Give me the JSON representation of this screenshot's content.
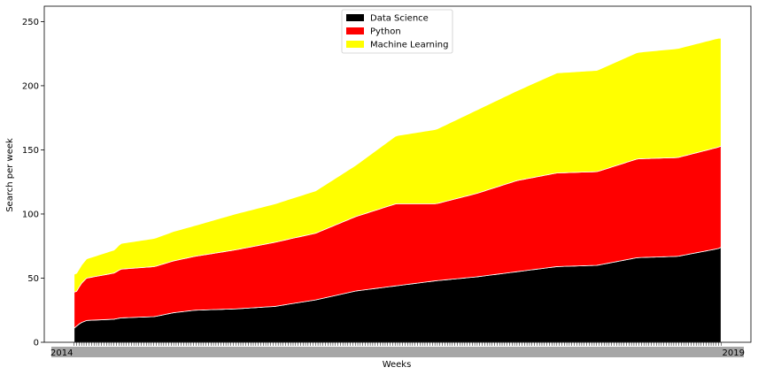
{
  "chart_data": {
    "type": "area",
    "stacked": true,
    "title": "",
    "xlabel": "Weeks",
    "ylabel": "Search per week",
    "ylim": [
      0,
      262
    ],
    "yticks": [
      0,
      50,
      100,
      150,
      200,
      250
    ],
    "x_tick_first": "2014",
    "x_tick_last": "2019",
    "legend_position": "top-center",
    "grid": false,
    "n_points": 261,
    "series": [
      {
        "name": "Data Science",
        "color": "#000000",
        "keypoints": [
          [
            0,
            11
          ],
          [
            4,
            15
          ],
          [
            8,
            17
          ],
          [
            26,
            18
          ],
          [
            30,
            19
          ],
          [
            52,
            20
          ],
          [
            64,
            23
          ],
          [
            78,
            25
          ],
          [
            104,
            26
          ],
          [
            130,
            28
          ],
          [
            140,
            30
          ],
          [
            156,
            33
          ],
          [
            182,
            40
          ],
          [
            208,
            44
          ],
          [
            234,
            48
          ],
          [
            260,
            51
          ],
          [
            286,
            55
          ],
          [
            312,
            59
          ],
          [
            338,
            60
          ],
          [
            364,
            66
          ],
          [
            390,
            67
          ],
          [
            416,
            73
          ],
          [
            418,
            74
          ]
        ]
      },
      {
        "name": "Python",
        "color": "#ff0000",
        "keypoints": [
          [
            0,
            28
          ],
          [
            2,
            27
          ],
          [
            4,
            30
          ],
          [
            8,
            33
          ],
          [
            26,
            36
          ],
          [
            30,
            38
          ],
          [
            52,
            39
          ],
          [
            78,
            42
          ],
          [
            104,
            46
          ],
          [
            130,
            50
          ],
          [
            156,
            52
          ],
          [
            182,
            58
          ],
          [
            208,
            64
          ],
          [
            234,
            60
          ],
          [
            260,
            65
          ],
          [
            286,
            71
          ],
          [
            312,
            73
          ],
          [
            338,
            73
          ],
          [
            364,
            77
          ],
          [
            390,
            77
          ],
          [
            416,
            79
          ],
          [
            418,
            79
          ]
        ]
      },
      {
        "name": "Machine Learning",
        "color": "#ffff00",
        "keypoints": [
          [
            0,
            14
          ],
          [
            4,
            14
          ],
          [
            8,
            15
          ],
          [
            26,
            18
          ],
          [
            30,
            20
          ],
          [
            52,
            22
          ],
          [
            78,
            24
          ],
          [
            104,
            28
          ],
          [
            130,
            30
          ],
          [
            156,
            33
          ],
          [
            182,
            40
          ],
          [
            208,
            53
          ],
          [
            234,
            58
          ],
          [
            260,
            65
          ],
          [
            286,
            70
          ],
          [
            312,
            78
          ],
          [
            338,
            79
          ],
          [
            364,
            83
          ],
          [
            390,
            85
          ],
          [
            416,
            85
          ],
          [
            418,
            84
          ]
        ]
      }
    ]
  }
}
